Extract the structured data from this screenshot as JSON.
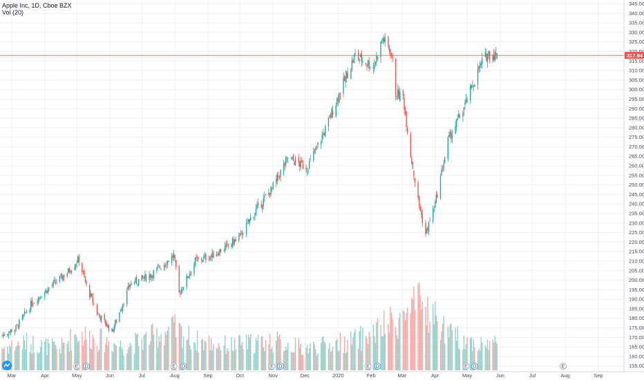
{
  "header": {
    "title": "Apple Inc, 1D, Cboe BZX",
    "volume_label": "Vol (20)"
  },
  "colors": {
    "up": "#26a69a",
    "down": "#ef5350",
    "up_volume": "#8fd3cc",
    "down_volume": "#f6a9a7",
    "grid": "#eef0f3",
    "axis_text": "#444a55",
    "price_line": "#ef5350"
  },
  "last_price_label": "317.94",
  "event_markers": [
    "E",
    "D",
    "E",
    "D",
    "E",
    "D",
    "E",
    "D",
    "E",
    "D",
    "E"
  ],
  "chart_data": {
    "type": "candlestick",
    "title": "Apple Inc, 1D, Cboe BZX",
    "y_ticks": [
      155,
      160,
      165,
      170,
      175,
      180,
      185,
      190,
      195,
      200,
      205,
      210,
      215,
      220,
      225,
      230,
      235,
      240,
      245,
      250,
      255,
      260,
      265,
      270,
      275,
      280,
      285,
      290,
      295,
      300,
      305,
      310,
      315,
      320,
      325,
      330,
      335,
      340,
      345
    ],
    "x_ticks": [
      "Mar",
      "Apr",
      "May",
      "Jun",
      "Jul",
      "Aug",
      "Sep",
      "Oct",
      "Nov",
      "Dec",
      "2020",
      "Feb",
      "Mar",
      "Apr",
      "May",
      "Jun",
      "Jul",
      "Aug",
      "Sep"
    ],
    "last_price": 317.94,
    "ylim": [
      152,
      347
    ],
    "price_path": [
      {
        "date": "2019-02-20",
        "value": 171
      },
      {
        "date": "2019-03-05",
        "value": 175
      },
      {
        "date": "2019-03-20",
        "value": 188
      },
      {
        "date": "2019-04-05",
        "value": 196
      },
      {
        "date": "2019-04-22",
        "value": 204
      },
      {
        "date": "2019-05-03",
        "value": 211
      },
      {
        "date": "2019-05-10",
        "value": 197
      },
      {
        "date": "2019-05-20",
        "value": 183
      },
      {
        "date": "2019-06-03",
        "value": 173
      },
      {
        "date": "2019-06-20",
        "value": 198
      },
      {
        "date": "2019-07-10",
        "value": 203
      },
      {
        "date": "2019-07-31",
        "value": 213
      },
      {
        "date": "2019-08-05",
        "value": 193
      },
      {
        "date": "2019-08-20",
        "value": 210
      },
      {
        "date": "2019-09-05",
        "value": 213
      },
      {
        "date": "2019-09-20",
        "value": 218
      },
      {
        "date": "2019-10-01",
        "value": 223
      },
      {
        "date": "2019-10-15",
        "value": 236
      },
      {
        "date": "2019-10-31",
        "value": 248
      },
      {
        "date": "2019-11-15",
        "value": 264
      },
      {
        "date": "2019-12-03",
        "value": 259
      },
      {
        "date": "2019-12-20",
        "value": 279
      },
      {
        "date": "2020-01-02",
        "value": 298
      },
      {
        "date": "2020-01-17",
        "value": 318
      },
      {
        "date": "2020-02-03",
        "value": 312
      },
      {
        "date": "2020-02-12",
        "value": 327
      },
      {
        "date": "2020-02-20",
        "value": 319
      },
      {
        "date": "2020-02-24",
        "value": 298
      },
      {
        "date": "2020-03-02",
        "value": 296
      },
      {
        "date": "2020-03-09",
        "value": 266
      },
      {
        "date": "2020-03-16",
        "value": 242
      },
      {
        "date": "2020-03-23",
        "value": 224
      },
      {
        "date": "2020-04-01",
        "value": 240
      },
      {
        "date": "2020-04-13",
        "value": 273
      },
      {
        "date": "2020-04-30",
        "value": 293
      },
      {
        "date": "2020-05-12",
        "value": 311
      },
      {
        "date": "2020-05-20",
        "value": 319
      },
      {
        "date": "2020-05-29",
        "value": 317.94
      }
    ],
    "volume_ylim": [
      0,
      110
    ],
    "volume_path": [
      {
        "date": "2019-02-20",
        "value": 25
      },
      {
        "date": "2019-03-15",
        "value": 30
      },
      {
        "date": "2019-04-15",
        "value": 24
      },
      {
        "date": "2019-05-01",
        "value": 40
      },
      {
        "date": "2019-06-15",
        "value": 26
      },
      {
        "date": "2019-07-31",
        "value": 45
      },
      {
        "date": "2019-08-20",
        "value": 32
      },
      {
        "date": "2019-09-20",
        "value": 27
      },
      {
        "date": "2019-10-31",
        "value": 32
      },
      {
        "date": "2019-12-01",
        "value": 24
      },
      {
        "date": "2020-01-15",
        "value": 32
      },
      {
        "date": "2020-02-03",
        "value": 40
      },
      {
        "date": "2020-03-01",
        "value": 58
      },
      {
        "date": "2020-03-20",
        "value": 72
      },
      {
        "date": "2020-04-15",
        "value": 38
      },
      {
        "date": "2020-05-15",
        "value": 28
      },
      {
        "date": "2020-05-29",
        "value": 30
      }
    ],
    "grid": true
  }
}
